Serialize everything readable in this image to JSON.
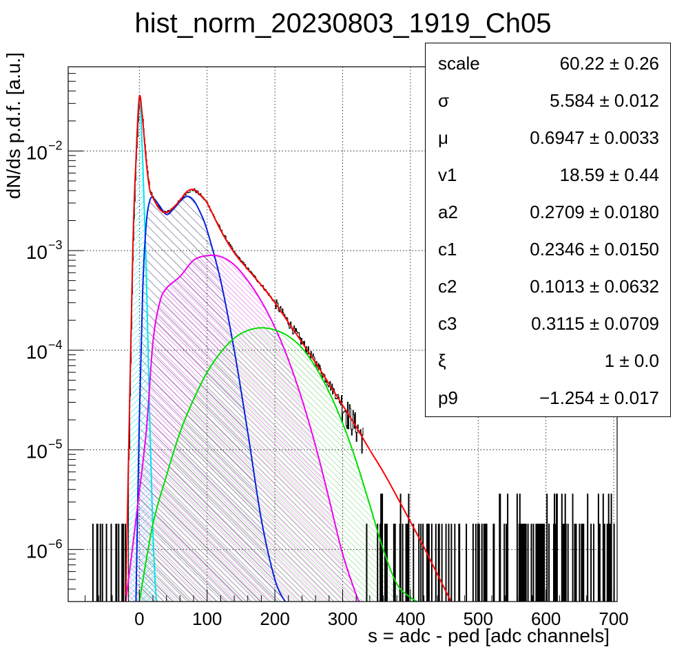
{
  "chart_data": {
    "type": "line",
    "title": "hist_norm_20230803_1919_Ch05",
    "xlabel": "s = adc - ped [adc channels]",
    "ylabel": "dN/ds p.d.f. [a.u.]",
    "xlim": [
      -105,
      705
    ],
    "ylim": [
      3e-07,
      0.07
    ],
    "yscale": "log",
    "grid": true,
    "x_ticks": [
      "0",
      "100",
      "200",
      "300",
      "400",
      "500",
      "600",
      "700"
    ],
    "y_tick_exponents": [
      "−2",
      "−3",
      "−4",
      "−5",
      "−6"
    ],
    "series": [
      {
        "color": "#ff0000",
        "x": [
          -20,
          -10,
          -5,
          0,
          5,
          10,
          15,
          20,
          30,
          40,
          50,
          60,
          70,
          80,
          90,
          100,
          120,
          140,
          160,
          180,
          200,
          220,
          240,
          260,
          280,
          300,
          320,
          340,
          360,
          380,
          400,
          420,
          440,
          460
        ],
        "y": [
          3e-07,
          0.0008,
          0.008,
          0.035,
          0.02,
          0.008,
          0.0042,
          0.0034,
          0.0026,
          0.0024,
          0.0027,
          0.0032,
          0.0039,
          0.0041,
          0.0036,
          0.003,
          0.0016,
          0.00095,
          0.00065,
          0.00045,
          0.0003,
          0.00019,
          0.00012,
          7.5e-05,
          4.6e-05,
          2.8e-05,
          1.7e-05,
          1e-05,
          6e-06,
          3.4e-06,
          1.9e-06,
          1.05e-06,
          5.6e-07,
          3e-07
        ]
      },
      {
        "color": "#00e5ee",
        "x": [
          -20,
          -15,
          -10,
          -5,
          0,
          5,
          10,
          15,
          20,
          25
        ],
        "y": [
          3e-07,
          2e-05,
          0.0008,
          0.008,
          0.032,
          0.008,
          0.0007,
          2.5e-05,
          1.5e-06,
          3e-07
        ]
      },
      {
        "color": "#0022dd",
        "x": [
          -5,
          0,
          5,
          10,
          15,
          20,
          30,
          40,
          50,
          60,
          70,
          80,
          90,
          100,
          120,
          140,
          160,
          180,
          200,
          215
        ],
        "y": [
          3e-07,
          2e-05,
          0.0004,
          0.0018,
          0.0031,
          0.0034,
          0.0028,
          0.0023,
          0.0026,
          0.0031,
          0.0035,
          0.0032,
          0.0024,
          0.0016,
          0.0005,
          0.0001,
          1.5e-05,
          2e-06,
          5e-07,
          3e-07
        ]
      },
      {
        "color": "#ee00ee",
        "x": [
          -20,
          -5,
          10,
          20,
          30,
          40,
          60,
          80,
          100,
          120,
          140,
          160,
          180,
          200,
          220,
          240,
          260,
          280,
          300,
          320,
          325
        ],
        "y": [
          3e-07,
          2e-06,
          1.5e-05,
          0.00012,
          0.0003,
          0.00042,
          0.00055,
          0.0008,
          0.00089,
          0.00087,
          0.00072,
          0.0005,
          0.00031,
          0.00017,
          8e-05,
          3.2e-05,
          1.1e-05,
          3.2e-06,
          9e-07,
          3.5e-07,
          3e-07
        ]
      },
      {
        "color": "#00dd00",
        "x": [
          0,
          20,
          40,
          60,
          80,
          100,
          120,
          140,
          160,
          180,
          200,
          220,
          240,
          260,
          280,
          300,
          320,
          340,
          360,
          380,
          400,
          410
        ],
        "y": [
          3e-07,
          1.8e-06,
          5.5e-06,
          1.5e-05,
          3.2e-05,
          6e-05,
          9.5e-05,
          0.000132,
          0.000158,
          0.000168,
          0.00016,
          0.000138,
          0.000105,
          6.8e-05,
          3.8e-05,
          1.85e-05,
          7.7e-06,
          2.8e-06,
          1e-06,
          4.5e-07,
          3.3e-07,
          3e-07
        ]
      }
    ]
  },
  "stats": [
    {
      "name": "scale",
      "value": "60.22 ± 0.26"
    },
    {
      "name": "σ",
      "value": "5.584 ± 0.012"
    },
    {
      "name": "μ",
      "value": "0.6947 ± 0.0033"
    },
    {
      "name": "v1",
      "value": "18.59 ± 0.44"
    },
    {
      "name": "a2",
      "value": "0.2709 ± 0.0180"
    },
    {
      "name": "c1",
      "value": "0.2346 ± 0.0150"
    },
    {
      "name": "c2",
      "value": "0.1013 ± 0.0632"
    },
    {
      "name": "c3",
      "value": "0.3115 ± 0.0709"
    },
    {
      "name": "ξ",
      "value": "1 ± 0.0"
    },
    {
      "name": "p9",
      "value": "−1.254 ± 0.017"
    }
  ]
}
